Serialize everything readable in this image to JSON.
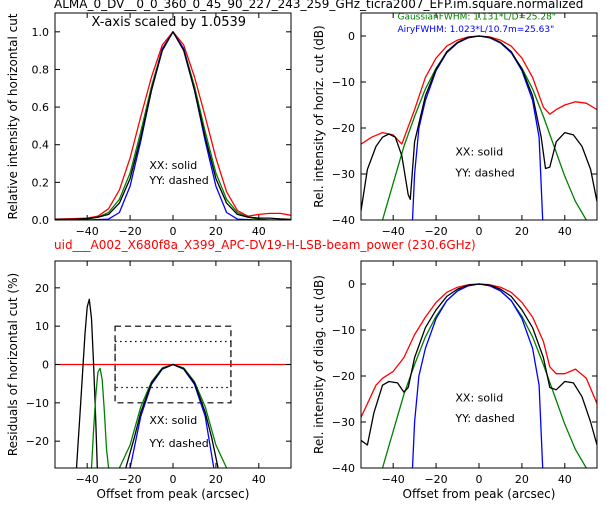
{
  "figure": {
    "title": "ALMA_0_DV__0_0_360_0_45_90_227_243_259_GHz_ticra2007_EFP.im.square.normalized",
    "subtitle": "uid___A002_X680f8a_X399_APC-DV19-H-LSB-beam_power (230.6GHz)",
    "subtitle_color": "#ff0000"
  },
  "colors": {
    "black": "#000000",
    "red": "#ff0000",
    "green": "#008000",
    "blue": "#0000ff"
  },
  "chart_data": [
    {
      "id": "top-left",
      "type": "line",
      "title": "",
      "xlabel": "",
      "ylabel": "Relative intensity of horizontal cut",
      "xlim": [
        -55,
        55
      ],
      "ylim": [
        0,
        1.1
      ],
      "xticks": [
        -40,
        -20,
        0,
        20,
        40
      ],
      "yticks": [
        0.0,
        0.2,
        0.4,
        0.6,
        0.8,
        1.0
      ],
      "ytick_labels": [
        "0.0",
        "0.2",
        "0.4",
        "0.6",
        "0.8",
        "1.0"
      ],
      "show_xtick_labels": true,
      "annotations": [
        {
          "text": "X-axis scaled by 1.0539",
          "x": -38,
          "y": 1.03
        },
        {
          "text": "XX: solid",
          "x": -11,
          "y": 0.27
        },
        {
          "text": "YY: dashed",
          "x": -11,
          "y": 0.19
        }
      ],
      "series": [
        {
          "color": "#ff0000",
          "x": [
            -55,
            -45,
            -40,
            -35,
            -30,
            -25,
            -20,
            -15,
            -10,
            -5,
            0,
            5,
            10,
            15,
            20,
            25,
            30,
            35,
            40,
            45,
            50,
            55
          ],
          "y": [
            0.005,
            0.008,
            0.01,
            0.02,
            0.06,
            0.16,
            0.33,
            0.55,
            0.76,
            0.93,
            1.0,
            0.93,
            0.76,
            0.55,
            0.33,
            0.15,
            0.05,
            0.02,
            0.03,
            0.035,
            0.035,
            0.025
          ]
        },
        {
          "color": "#008000",
          "x": [
            -55,
            -45,
            -40,
            -35,
            -30,
            -25,
            -20,
            -15,
            -10,
            -5,
            0,
            5,
            10,
            15,
            20,
            25,
            30,
            35,
            40,
            45,
            50,
            55
          ],
          "y": [
            0.0,
            0.0,
            0.005,
            0.015,
            0.04,
            0.11,
            0.25,
            0.47,
            0.71,
            0.91,
            1.0,
            0.91,
            0.71,
            0.47,
            0.25,
            0.11,
            0.04,
            0.015,
            0.005,
            0.0,
            0.0,
            0.0
          ]
        },
        {
          "color": "#0000ff",
          "x": [
            -55,
            -40,
            -30,
            -25,
            -20,
            -15,
            -10,
            -5,
            0,
            5,
            10,
            15,
            20,
            25,
            30,
            40,
            55
          ],
          "y": [
            0.0,
            0.0,
            0.005,
            0.04,
            0.18,
            0.42,
            0.69,
            0.91,
            1.0,
            0.91,
            0.69,
            0.42,
            0.18,
            0.04,
            0.005,
            0.0,
            0.0
          ]
        },
        {
          "color": "#000000",
          "x": [
            -55,
            -45,
            -40,
            -35,
            -30,
            -25,
            -20,
            -15,
            -10,
            -5,
            0,
            5,
            10,
            15,
            20,
            25,
            30,
            35,
            40,
            45,
            50,
            55
          ],
          "y": [
            0.003,
            0.005,
            0.008,
            0.015,
            0.03,
            0.09,
            0.22,
            0.44,
            0.69,
            0.9,
            1.0,
            0.9,
            0.69,
            0.44,
            0.22,
            0.09,
            0.03,
            0.015,
            0.01,
            0.01,
            0.006,
            0.003
          ]
        }
      ]
    },
    {
      "id": "top-right",
      "type": "line",
      "title": "",
      "xlabel": "",
      "ylabel": "Rel. intensity of horiz. cut (dB)",
      "xlim": [
        -55,
        55
      ],
      "ylim": [
        -40,
        5
      ],
      "xticks": [
        -40,
        -20,
        0,
        20,
        40
      ],
      "yticks": [
        -40,
        -30,
        -20,
        -10,
        0
      ],
      "ytick_labels": [
        "−40",
        "−30",
        "−20",
        "−10",
        "0"
      ],
      "show_xtick_labels": true,
      "annotations": [
        {
          "text": "GaussianFWHM: 1.131*L/D=25.28\"",
          "x": -38,
          "y": 3.6,
          "color": "#008000",
          "small": true
        },
        {
          "text": "AiryFWHM: 1.023*L/10.7m=25.63\"",
          "x": -38,
          "y": 0.9,
          "color": "#0000ff",
          "small": true
        },
        {
          "text": "XX: solid",
          "x": -11,
          "y": -26
        },
        {
          "text": "YY: dashed",
          "x": -11,
          "y": -30.5
        }
      ],
      "series": [
        {
          "color": "#ff0000",
          "x": [
            -55,
            -50,
            -45,
            -40,
            -36,
            -30,
            -25,
            -20,
            -15,
            -10,
            -5,
            0,
            5,
            10,
            15,
            20,
            25,
            30,
            33,
            36,
            40,
            45,
            50,
            55
          ],
          "y": [
            -23.5,
            -22,
            -21,
            -21.5,
            -23.5,
            -16,
            -9,
            -4.8,
            -2.2,
            -0.9,
            -0.2,
            0,
            -0.2,
            -0.9,
            -2.2,
            -4.8,
            -9,
            -15.5,
            -17,
            -16,
            -15,
            -14.3,
            -14.6,
            -16
          ]
        },
        {
          "color": "#008000",
          "x": [
            -45,
            -40,
            -35,
            -30,
            -25,
            -20,
            -15,
            -10,
            -5,
            0,
            5,
            10,
            15,
            20,
            25,
            30,
            35,
            40,
            45,
            50
          ],
          "y": [
            -40,
            -32,
            -24,
            -17.5,
            -11.5,
            -7,
            -3.6,
            -1.5,
            -0.3,
            0,
            -0.3,
            -1.5,
            -3.6,
            -7,
            -11.5,
            -17.5,
            -24,
            -30.5,
            -36,
            -40
          ]
        },
        {
          "color": "#0000ff",
          "x": [
            -31,
            -30,
            -28,
            -25,
            -20,
            -15,
            -10,
            -5,
            0,
            5,
            10,
            15,
            20,
            25,
            28,
            29.7
          ],
          "y": [
            -40,
            -30,
            -20,
            -14,
            -7.5,
            -3.6,
            -1.5,
            -0.4,
            0,
            -0.4,
            -1.5,
            -3.6,
            -7.5,
            -14,
            -22,
            -40
          ]
        },
        {
          "color": "#000000",
          "x": [
            -55,
            -52,
            -48,
            -45,
            -42,
            -39,
            -36,
            -33,
            -32,
            -30,
            -25,
            -20,
            -15,
            -10,
            -5,
            0,
            5,
            10,
            15,
            20,
            25,
            29,
            31,
            33,
            36,
            40,
            44,
            48,
            52,
            55
          ],
          "y": [
            -38,
            -29,
            -24,
            -22,
            -21.3,
            -22,
            -26,
            -34.5,
            -35.5,
            -23,
            -13,
            -7.2,
            -3.4,
            -1.4,
            -0.3,
            0,
            -0.3,
            -1.4,
            -3.4,
            -7.2,
            -13,
            -22,
            -28.8,
            -28.5,
            -23,
            -21,
            -21.5,
            -24,
            -29,
            -36
          ]
        }
      ]
    },
    {
      "id": "bottom-left",
      "type": "line",
      "title": "",
      "xlabel": "Offset from peak (arcsec)",
      "ylabel": "Residuals of horizontal cut (%)",
      "xlim": [
        -55,
        55
      ],
      "ylim": [
        -27,
        27
      ],
      "xticks": [
        -40,
        -20,
        0,
        20,
        40
      ],
      "yticks": [
        -20,
        -10,
        0,
        10,
        20
      ],
      "ytick_labels": [
        "−20",
        "−10",
        "0",
        "10",
        "20"
      ],
      "show_xtick_labels": true,
      "annotations": [
        {
          "text": "XX: solid",
          "x": -11,
          "y": -15.5
        },
        {
          "text": "YY: dashed",
          "x": -11,
          "y": -21.5
        }
      ],
      "boxes": [
        {
          "x": [
            -27,
            27
          ],
          "y": [
            -10,
            10
          ],
          "style": "dashed"
        },
        {
          "x": [
            -27,
            27
          ],
          "y": [
            -6,
            6
          ],
          "style": "dotted"
        }
      ],
      "series": [
        {
          "color": "#ff0000",
          "x": [
            -55,
            55
          ],
          "y": [
            0,
            0
          ]
        },
        {
          "color": "#000000",
          "x": [
            -45,
            -43,
            -41,
            -40,
            -39,
            -38,
            -37,
            -36,
            -35.3
          ],
          "y": [
            -27,
            -10,
            8,
            15,
            17,
            12,
            0,
            -15,
            -27
          ]
        },
        {
          "color": "#008000",
          "x": [
            -38,
            -37,
            -36,
            -35,
            -34,
            -33,
            -32,
            -31,
            -30
          ],
          "y": [
            -27,
            -17,
            -8,
            -2,
            -1,
            -4,
            -12,
            -22,
            -27
          ]
        },
        {
          "color": "#008000",
          "x": [
            -25,
            -20,
            -15,
            -10,
            -5,
            0,
            5,
            10,
            15,
            20,
            25
          ],
          "y": [
            -27,
            -21,
            -11,
            -4.5,
            -0.9,
            0,
            -0.9,
            -4.5,
            -11,
            -21,
            -27
          ]
        },
        {
          "color": "#0000ff",
          "x": [
            -20,
            -15,
            -10,
            -5,
            0,
            5,
            10,
            15,
            19
          ],
          "y": [
            -27,
            -13.5,
            -5.2,
            -1.2,
            0,
            -1.2,
            -5.2,
            -13.5,
            -27
          ]
        },
        {
          "color": "#000000",
          "x": [
            -22,
            -18,
            -15,
            -10,
            -5,
            0,
            5,
            10,
            15,
            18,
            21
          ],
          "y": [
            -27,
            -19,
            -12.5,
            -4.8,
            -1.1,
            0,
            -1.1,
            -4.8,
            -12.5,
            -19,
            -27
          ]
        }
      ]
    },
    {
      "id": "bottom-right",
      "type": "line",
      "title": "",
      "xlabel": "Offset from peak (arcsec)",
      "ylabel": "Rel. intensity of diag. cut (dB)",
      "xlim": [
        -55,
        55
      ],
      "ylim": [
        -40,
        5
      ],
      "xticks": [
        -40,
        -20,
        0,
        20,
        40
      ],
      "yticks": [
        -40,
        -30,
        -20,
        -10,
        0
      ],
      "ytick_labels": [
        "−40",
        "−30",
        "−20",
        "−10",
        "0"
      ],
      "show_xtick_labels": true,
      "annotations": [
        {
          "text": "XX: solid",
          "x": -11,
          "y": -25.5
        },
        {
          "text": "YY: dashed",
          "x": -11,
          "y": -30
        }
      ],
      "series": [
        {
          "color": "#ff0000",
          "x": [
            -55,
            -52,
            -48,
            -45,
            -40,
            -35,
            -30,
            -25,
            -20,
            -15,
            -10,
            -5,
            0,
            5,
            10,
            15,
            20,
            25,
            30,
            33,
            36,
            40,
            45,
            50,
            55
          ],
          "y": [
            -29,
            -26,
            -22,
            -20.5,
            -19,
            -16,
            -11,
            -7.2,
            -4,
            -1.8,
            -0.7,
            -0.15,
            0,
            -0.15,
            -0.7,
            -1.8,
            -4,
            -7.2,
            -12.5,
            -18,
            -19.5,
            -19.5,
            -18.5,
            -20.5,
            -26
          ]
        },
        {
          "color": "#008000",
          "x": [
            -45,
            -40,
            -35,
            -30,
            -25,
            -20,
            -15,
            -10,
            -5,
            0,
            5,
            10,
            15,
            20,
            25,
            30,
            35,
            40,
            45,
            50
          ],
          "y": [
            -40,
            -32,
            -24,
            -17.5,
            -11.5,
            -7,
            -3.6,
            -1.5,
            -0.3,
            0,
            -0.3,
            -1.5,
            -3.6,
            -7,
            -11.5,
            -17.5,
            -24,
            -30.5,
            -36,
            -40
          ]
        },
        {
          "color": "#0000ff",
          "x": [
            -31,
            -30,
            -28,
            -25,
            -20,
            -15,
            -10,
            -5,
            0,
            5,
            10,
            15,
            20,
            25,
            28,
            29.7
          ],
          "y": [
            -40,
            -30,
            -20,
            -14,
            -7.5,
            -3.6,
            -1.5,
            -0.4,
            0,
            -0.4,
            -1.5,
            -3.6,
            -7.5,
            -14,
            -22,
            -40
          ]
        },
        {
          "color": "#000000",
          "x": [
            -55,
            -52,
            -49,
            -45,
            -42,
            -38,
            -35,
            -33,
            -30,
            -25,
            -20,
            -15,
            -10,
            -5,
            0,
            5,
            10,
            15,
            20,
            25,
            30,
            33,
            36,
            40,
            44,
            48,
            52,
            55
          ],
          "y": [
            -34,
            -35,
            -28,
            -22,
            -21.2,
            -21.5,
            -23.5,
            -22.5,
            -16,
            -9.5,
            -5.6,
            -2.7,
            -1.1,
            -0.25,
            0,
            -0.25,
            -1.1,
            -2.7,
            -5.6,
            -9.5,
            -16,
            -22.5,
            -23,
            -21.2,
            -21.5,
            -24.5,
            -30,
            -35
          ]
        }
      ]
    }
  ]
}
